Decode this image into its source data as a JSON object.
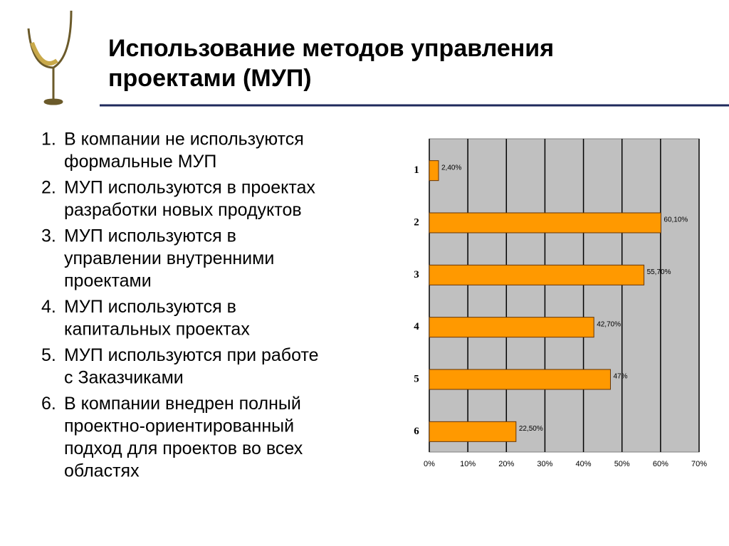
{
  "slide": {
    "title_lines": [
      "Использование методов управления",
      "проектами (МУП)"
    ],
    "items": [
      {
        "number": "1.",
        "lines": [
          "В компании не используются",
          "формальные МУП"
        ]
      },
      {
        "number": "2.",
        "lines": [
          "МУП используются в проектах",
          "разработки новых продуктов"
        ]
      },
      {
        "number": "3.",
        "lines": [
          "МУП используются в",
          "управлении внутренними",
          "проектами"
        ]
      },
      {
        "number": "4.",
        "lines": [
          "МУП используются в",
          "капитальных проектах"
        ]
      },
      {
        "number": "5.",
        "lines": [
          "МУП используются при работе",
          "с Заказчиками"
        ]
      },
      {
        "number": "6.",
        "lines": [
          "В компании внедрен полный",
          "проектно-ориентированный",
          "подход для проектов во всех",
          "областях"
        ]
      }
    ]
  },
  "chart_data": {
    "type": "hbar",
    "categories": [
      "1",
      "2",
      "3",
      "4",
      "5",
      "6"
    ],
    "values": [
      2.4,
      60.1,
      55.7,
      42.7,
      47,
      22.5
    ],
    "value_labels": [
      "2,40%",
      "60,10%",
      "55,70%",
      "42,70%",
      "47%",
      "22,50%"
    ],
    "color": "#ff9900",
    "xlim": [
      0,
      70
    ],
    "xticks": [
      {
        "value": 0,
        "label": "0%"
      },
      {
        "value": 10,
        "label": "10%"
      },
      {
        "value": 20,
        "label": "20%"
      },
      {
        "value": 30,
        "label": "30%"
      },
      {
        "value": 40,
        "label": "40%"
      },
      {
        "value": 50,
        "label": "50%"
      },
      {
        "value": 60,
        "label": "60%"
      },
      {
        "value": 70,
        "label": "70%"
      }
    ],
    "grid": true
  }
}
